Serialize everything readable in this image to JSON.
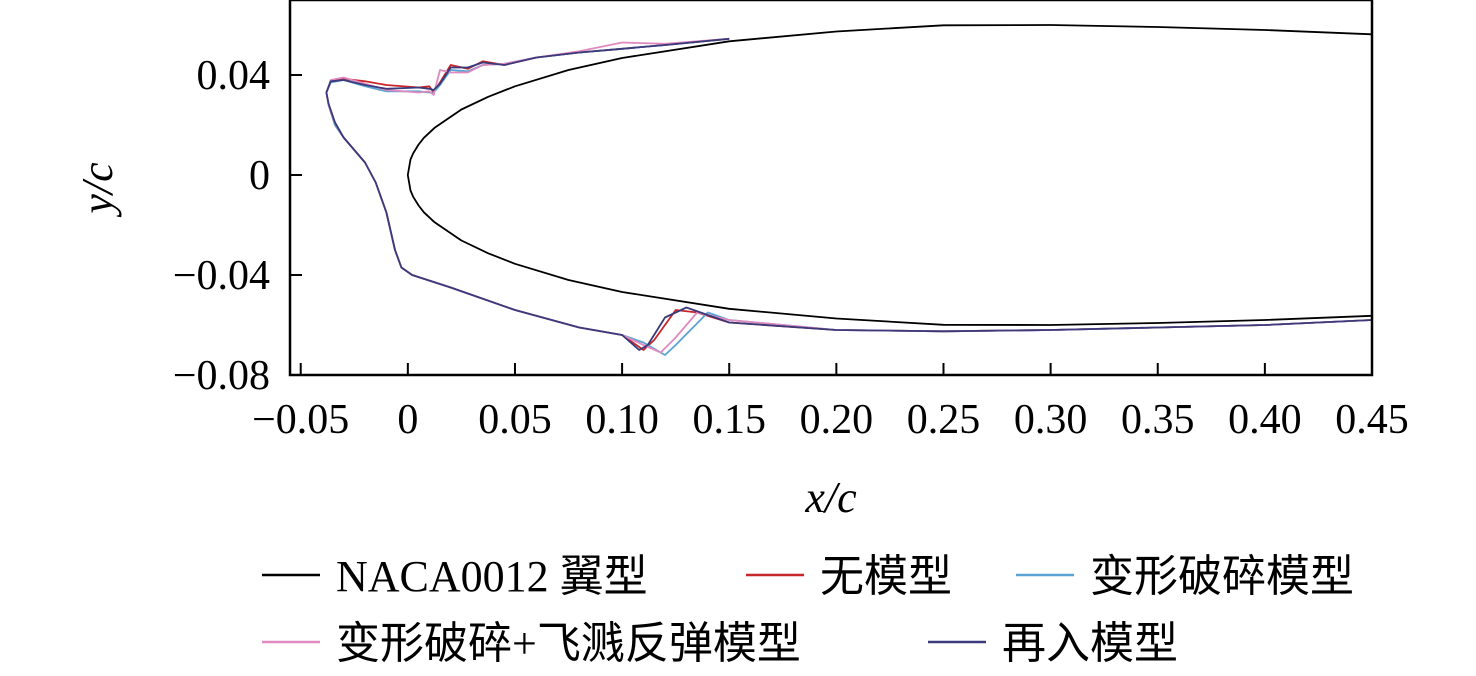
{
  "chart_data": {
    "type": "line",
    "xlabel": "x/c",
    "ylabel": "y/c",
    "xlim": [
      -0.055,
      0.45
    ],
    "ylim": [
      -0.08,
      0.07
    ],
    "xticks": [
      -0.05,
      0,
      0.05,
      0.1,
      0.15,
      0.2,
      0.25,
      0.3,
      0.35,
      0.4,
      0.45
    ],
    "xtick_labels": [
      "−0.05",
      "0",
      "0.05",
      "0.10",
      "0.15",
      "0.20",
      "0.25",
      "0.30",
      "0.35",
      "0.40",
      "0.45"
    ],
    "yticks": [
      0.04,
      0,
      -0.04,
      -0.08
    ],
    "ytick_labels": [
      "0.04",
      "0",
      "−0.04",
      "−0.08"
    ],
    "grid": false,
    "legend_position": "bottom",
    "series": [
      {
        "name": "NACA0012 翼型",
        "color": "#000000",
        "x": [
          0.45,
          0.4,
          0.35,
          0.3,
          0.25,
          0.2,
          0.15,
          0.1,
          0.075,
          0.05,
          0.0375,
          0.025,
          0.0125,
          0.0075,
          0.005,
          0.0025,
          0.00125,
          0,
          0.00125,
          0.0025,
          0.005,
          0.0075,
          0.0125,
          0.025,
          0.0375,
          0.05,
          0.075,
          0.1,
          0.15,
          0.2,
          0.25,
          0.3,
          0.35,
          0.4,
          0.45
        ],
        "y": [
          0.0563,
          0.058,
          0.0592,
          0.06,
          0.0599,
          0.0574,
          0.0535,
          0.0468,
          0.042,
          0.0355,
          0.0313,
          0.0262,
          0.0189,
          0.0149,
          0.0122,
          0.0087,
          0.0062,
          0,
          -0.0062,
          -0.0087,
          -0.0122,
          -0.0149,
          -0.0189,
          -0.0262,
          -0.0313,
          -0.0355,
          -0.042,
          -0.0468,
          -0.0535,
          -0.0574,
          -0.0599,
          -0.06,
          -0.0592,
          -0.058,
          -0.0563
        ]
      },
      {
        "name": "无模型",
        "color": "#c8262a",
        "x": [
          0.15,
          0.12,
          0.1,
          0.08,
          0.06,
          0.045,
          0.035,
          0.028,
          0.02,
          0.015,
          0.012,
          0.01,
          0.005,
          -0.01,
          -0.02,
          -0.03,
          -0.036,
          -0.038,
          -0.037,
          -0.034,
          -0.03,
          -0.025,
          -0.02,
          -0.015,
          -0.01,
          -0.006,
          -0.003,
          0.002,
          0.02,
          0.05,
          0.08,
          0.1,
          0.11,
          0.115,
          0.125,
          0.135,
          0.15,
          0.2,
          0.25,
          0.3,
          0.35,
          0.4,
          0.45
        ],
        "y": [
          0.0545,
          0.052,
          0.0505,
          0.049,
          0.047,
          0.044,
          0.0455,
          0.0425,
          0.044,
          0.037,
          0.033,
          0.0355,
          0.035,
          0.036,
          0.0375,
          0.0385,
          0.0375,
          0.033,
          0.028,
          0.02,
          0.015,
          0.01,
          0.005,
          -0.003,
          -0.015,
          -0.03,
          -0.037,
          -0.04,
          -0.045,
          -0.054,
          -0.061,
          -0.064,
          -0.07,
          -0.066,
          -0.054,
          -0.055,
          -0.059,
          -0.062,
          -0.0625,
          -0.062,
          -0.061,
          -0.06,
          -0.058
        ]
      },
      {
        "name": "变形破碎模型",
        "color": "#5aa3d2",
        "x": [
          0.15,
          0.12,
          0.1,
          0.08,
          0.06,
          0.045,
          0.035,
          0.028,
          0.02,
          0.015,
          0.012,
          0.01,
          0.005,
          -0.01,
          -0.02,
          -0.03,
          -0.036,
          -0.038,
          -0.037,
          -0.034,
          -0.03,
          -0.025,
          -0.02,
          -0.015,
          -0.01,
          -0.006,
          -0.003,
          0.002,
          0.02,
          0.05,
          0.08,
          0.1,
          0.11,
          0.12,
          0.125,
          0.14,
          0.15,
          0.2,
          0.25,
          0.3,
          0.35,
          0.4,
          0.45
        ],
        "y": [
          0.0545,
          0.052,
          0.0505,
          0.049,
          0.047,
          0.0445,
          0.044,
          0.0415,
          0.042,
          0.036,
          0.033,
          0.033,
          0.0335,
          0.0335,
          0.0355,
          0.038,
          0.037,
          0.033,
          0.028,
          0.02,
          0.015,
          0.01,
          0.005,
          -0.003,
          -0.015,
          -0.03,
          -0.037,
          -0.04,
          -0.045,
          -0.054,
          -0.061,
          -0.064,
          -0.067,
          -0.072,
          -0.068,
          -0.055,
          -0.058,
          -0.062,
          -0.0625,
          -0.062,
          -0.061,
          -0.06,
          -0.058
        ]
      },
      {
        "name": "变形破碎+飞溅反弹模型",
        "color": "#e08ac0",
        "x": [
          0.15,
          0.12,
          0.1,
          0.08,
          0.06,
          0.045,
          0.035,
          0.028,
          0.02,
          0.015,
          0.012,
          0.01,
          0.005,
          -0.01,
          -0.02,
          -0.03,
          -0.036,
          -0.038,
          -0.037,
          -0.034,
          -0.03,
          -0.025,
          -0.02,
          -0.015,
          -0.01,
          -0.006,
          -0.003,
          0.002,
          0.02,
          0.05,
          0.08,
          0.1,
          0.11,
          0.118,
          0.125,
          0.135,
          0.15,
          0.2,
          0.25,
          0.3,
          0.35,
          0.4,
          0.45
        ],
        "y": [
          0.0545,
          0.0525,
          0.053,
          0.0495,
          0.047,
          0.0445,
          0.044,
          0.041,
          0.041,
          0.042,
          0.032,
          0.0335,
          0.033,
          0.034,
          0.0365,
          0.039,
          0.038,
          0.033,
          0.028,
          0.021,
          0.015,
          0.01,
          0.005,
          -0.003,
          -0.015,
          -0.03,
          -0.037,
          -0.04,
          -0.045,
          -0.054,
          -0.061,
          -0.064,
          -0.068,
          -0.071,
          -0.065,
          -0.055,
          -0.058,
          -0.062,
          -0.0625,
          -0.062,
          -0.061,
          -0.06,
          -0.058
        ]
      },
      {
        "name": "再入模型",
        "color": "#3b3a7a",
        "x": [
          0.15,
          0.12,
          0.1,
          0.08,
          0.06,
          0.045,
          0.035,
          0.028,
          0.02,
          0.015,
          0.012,
          0.01,
          0.005,
          -0.01,
          -0.02,
          -0.03,
          -0.036,
          -0.038,
          -0.037,
          -0.034,
          -0.03,
          -0.025,
          -0.02,
          -0.015,
          -0.01,
          -0.006,
          -0.003,
          0.002,
          0.02,
          0.05,
          0.08,
          0.1,
          0.108,
          0.112,
          0.12,
          0.13,
          0.15,
          0.2,
          0.25,
          0.3,
          0.35,
          0.4,
          0.45
        ],
        "y": [
          0.0545,
          0.052,
          0.0505,
          0.049,
          0.047,
          0.044,
          0.045,
          0.043,
          0.043,
          0.0365,
          0.034,
          0.0345,
          0.035,
          0.0345,
          0.036,
          0.038,
          0.0375,
          0.033,
          0.0285,
          0.021,
          0.015,
          0.01,
          0.005,
          -0.003,
          -0.015,
          -0.03,
          -0.037,
          -0.04,
          -0.045,
          -0.054,
          -0.061,
          -0.064,
          -0.07,
          -0.068,
          -0.057,
          -0.053,
          -0.059,
          -0.062,
          -0.0625,
          -0.062,
          -0.061,
          -0.06,
          -0.058
        ]
      }
    ]
  }
}
